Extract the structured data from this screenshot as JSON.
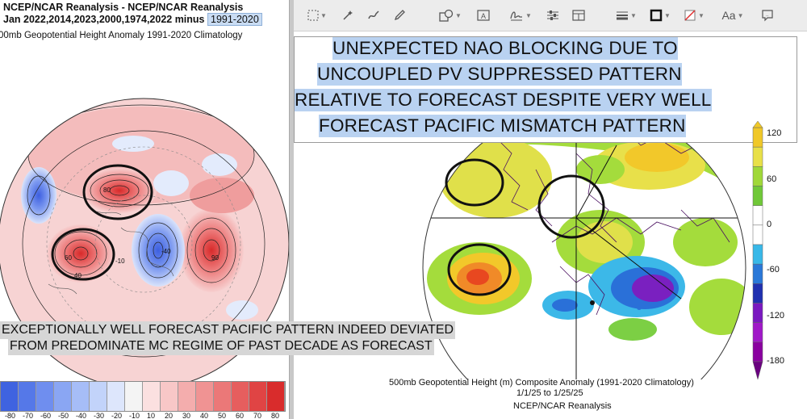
{
  "left_panel": {
    "title_line1": "NCEP/NCAR Reanalysis - NCEP/NCAR Reanalysis",
    "title_line2": "Jan 2022,2014,2023,2000,1974,2022 minus",
    "climatology_box": "1991-2020",
    "subtitle": "00mb Geopotential Height Anomaly  1991-2020 Climatology",
    "contour_labels": [
      "-40",
      "60",
      "-10",
      "90",
      "80",
      "40"
    ],
    "colorbar_labels": [
      "-80",
      "-70",
      "-60",
      "-50",
      "-40",
      "-30",
      "-20",
      "-10",
      "10",
      "20",
      "30",
      "40",
      "50",
      "60",
      "70",
      "80"
    ],
    "colorbar_colors": [
      "#3f63e0",
      "#5578e8",
      "#6f8eef",
      "#8aa6f3",
      "#a6bdf7",
      "#c2d3fa",
      "#dde6fc",
      "#f4f4f4",
      "#fbe0e0",
      "#f8c7c7",
      "#f4adad",
      "#f09393",
      "#eb7878",
      "#e65e5e",
      "#e04444",
      "#d92c2c"
    ]
  },
  "overlay_text": {
    "line1": "EXCEPTIONALLY WELL FORECAST PACIFIC PATTERN INDEED DEVIATED",
    "line2": "FROM PREDOMINATE MC REGIME OF PAST DECADE AS FORECAST"
  },
  "toolbar": {
    "icons": [
      "select-rect-icon",
      "magic-wand-icon",
      "sketch-icon",
      "draw-icon",
      "shapes-icon",
      "text-box-icon",
      "sign-icon",
      "adjust-color-icon",
      "page-layout-icon",
      "line-style-icon",
      "border-color-icon",
      "fill-color-icon",
      "text-style-icon",
      "note-icon"
    ],
    "text_style_label": "Aa"
  },
  "annotation": {
    "lines": [
      "UNEXPECTED NAO BLOCKING DUE TO",
      "UNCOUPLED PV SUPPRESSED PATTERN",
      "RELATIVE TO FORECAST DESPITE VERY WELL",
      "FORECAST PACIFIC MISMATCH PATTERN"
    ]
  },
  "right_map": {
    "colorbar_labels": [
      "120",
      "60",
      "0",
      "-60",
      "-120",
      "-180"
    ],
    "colorbar_colors": [
      "#f0c828",
      "#e8e048",
      "#a0d838",
      "#70c838",
      "#ffffff",
      "#ffffff",
      "#38b8e8",
      "#2a78d8",
      "#2030b0",
      "#7a18c0",
      "#a018c8",
      "#8a00a0"
    ],
    "caption_line1": "500mb Geopotential Height (m) Composite Anomaly (1991-2020 Climatology)",
    "caption_line2": "1/1/25  to 1/25/25",
    "caption_line3": "NCEP/NCAR Reanalysis"
  },
  "colors": {
    "selection_highlight": "#b9d2f1",
    "overlay_bg": "#d6d6d6",
    "toolbar_bg": "#ececec"
  }
}
